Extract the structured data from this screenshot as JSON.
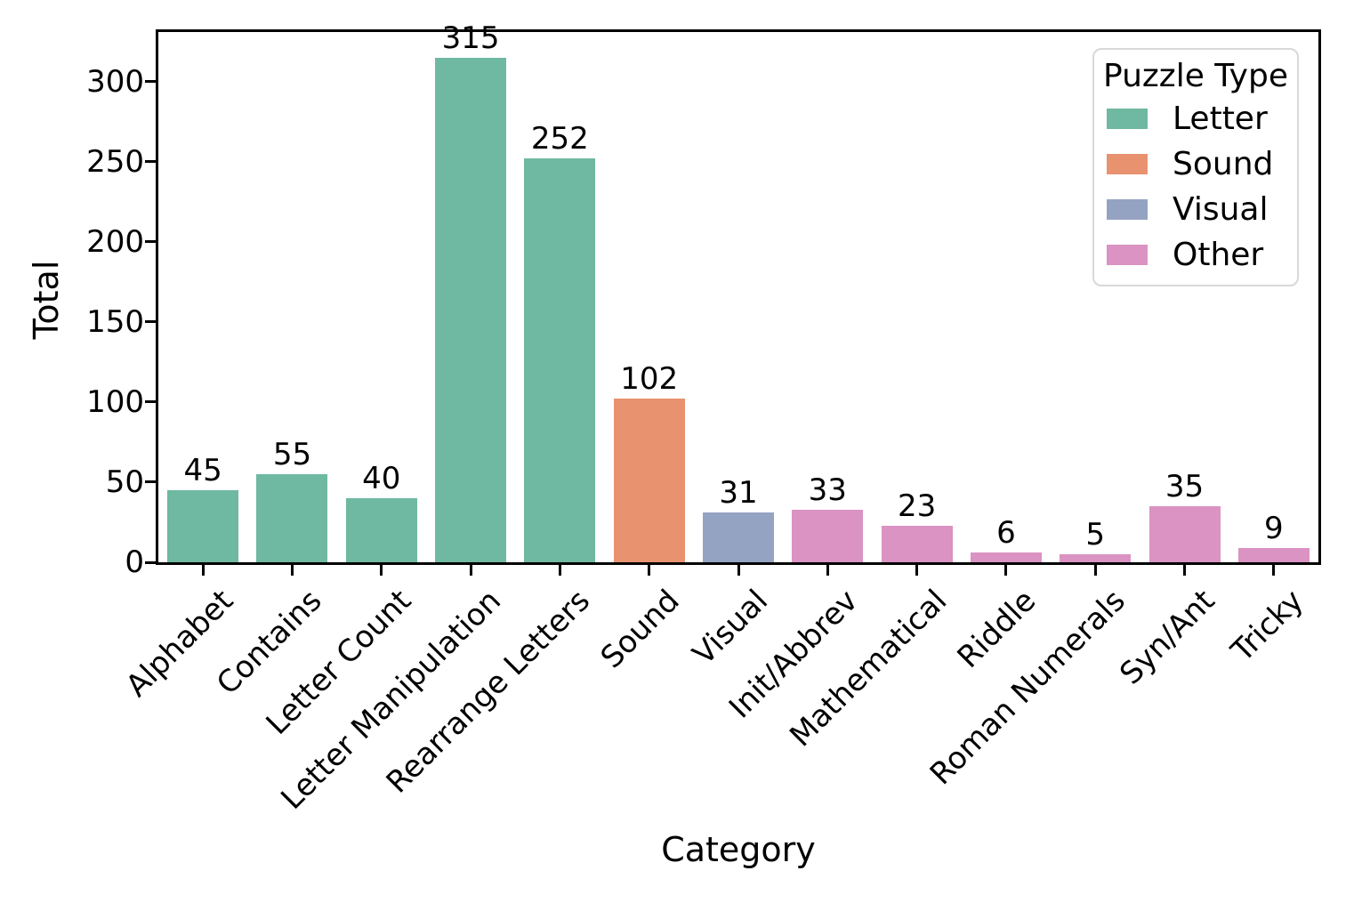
{
  "chart_data": {
    "type": "bar",
    "title": "",
    "xlabel": "Category",
    "ylabel": "Total",
    "ylim": [
      0,
      331
    ],
    "yticks": [
      0,
      50,
      100,
      150,
      200,
      250,
      300
    ],
    "grid": false,
    "categories": [
      "Alphabet",
      "Contains",
      "Letter Count",
      "Letter Manipulation",
      "Rearrange Letters",
      "Sound",
      "Visual",
      "Init/Abbrev",
      "Mathematical",
      "Riddle",
      "Roman Numerals",
      "Syn/Ant",
      "Tricky"
    ],
    "values": [
      45,
      55,
      40,
      315,
      252,
      102,
      31,
      33,
      23,
      6,
      5,
      35,
      9
    ],
    "bar_types": [
      "Letter",
      "Letter",
      "Letter",
      "Letter",
      "Letter",
      "Sound",
      "Visual",
      "Other",
      "Other",
      "Other",
      "Other",
      "Other",
      "Other"
    ],
    "legend": {
      "title": "Puzzle Type",
      "position": "upper right",
      "entries": [
        {
          "label": "Letter",
          "color": "#6fb8a1"
        },
        {
          "label": "Sound",
          "color": "#e8926f"
        },
        {
          "label": "Visual",
          "color": "#95a3c3"
        },
        {
          "label": "Other",
          "color": "#da93c2"
        }
      ]
    },
    "colors": {
      "axis": "#000000",
      "text": "#000000",
      "legend_border": "#d8d8d8"
    }
  }
}
